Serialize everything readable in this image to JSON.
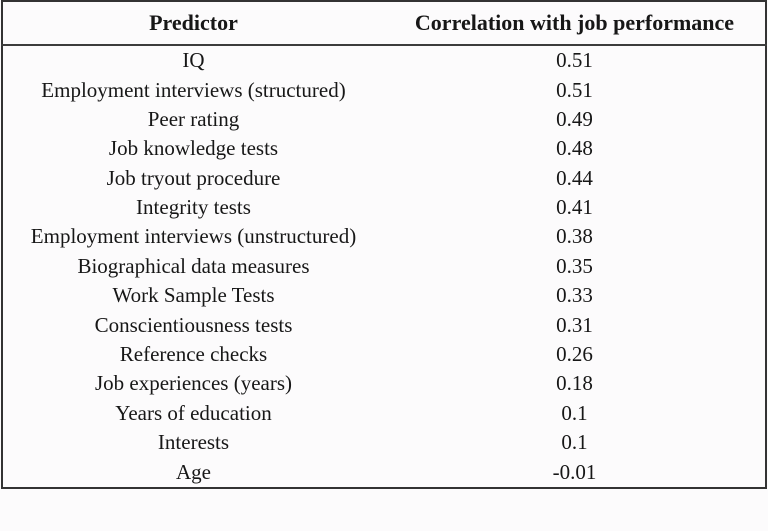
{
  "chart_data": {
    "type": "table",
    "columns": [
      "Predictor",
      "Correlation with job performance"
    ],
    "rows": [
      {
        "predictor": "IQ",
        "correlation": 0.51
      },
      {
        "predictor": "Employment interviews (structured)",
        "correlation": 0.51
      },
      {
        "predictor": "Peer rating",
        "correlation": 0.49
      },
      {
        "predictor": "Job knowledge tests",
        "correlation": 0.48
      },
      {
        "predictor": "Job tryout procedure",
        "correlation": 0.44
      },
      {
        "predictor": "Integrity tests",
        "correlation": 0.41
      },
      {
        "predictor": "Employment interviews (unstructured)",
        "correlation": 0.38
      },
      {
        "predictor": "Biographical data measures",
        "correlation": 0.35
      },
      {
        "predictor": "Work Sample Tests",
        "correlation": 0.33
      },
      {
        "predictor": "Conscientiousness tests",
        "correlation": 0.31
      },
      {
        "predictor": "Reference checks",
        "correlation": 0.26
      },
      {
        "predictor": "Job experiences (years)",
        "correlation": 0.18
      },
      {
        "predictor": "Years of education",
        "correlation": 0.1
      },
      {
        "predictor": "Interests",
        "correlation": 0.1
      },
      {
        "predictor": "Age",
        "correlation": -0.01
      }
    ],
    "layout": {
      "grid": "off",
      "header_rule": "heavy",
      "outer_border": "solid",
      "text_color": "#171717",
      "border_color": "#333333",
      "background_color": "#fcfbfc"
    }
  }
}
